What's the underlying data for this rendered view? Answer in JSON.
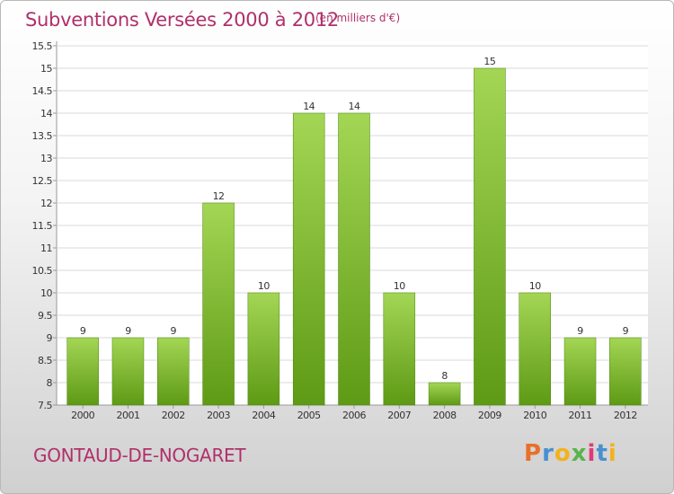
{
  "header": {
    "title": "Subventions Versées 2000 à 2012",
    "subtitle": "(en milliers d'€)"
  },
  "footer": {
    "commune": "GONTAUD-DE-NOGARET",
    "brand": {
      "letters": [
        "P",
        "r",
        "o",
        "x",
        "i",
        "t",
        "i"
      ],
      "colors": [
        "#e8702a",
        "#4a8fd0",
        "#f2b21e",
        "#5ab44a",
        "#e03a7a",
        "#4a8fd0",
        "#f2b21e"
      ]
    }
  },
  "colors": {
    "bar_light": "#a3d654",
    "bar_dark": "#5e9a15",
    "grid": "#d8d8d8",
    "title": "#b0306a"
  },
  "chart_data": {
    "type": "bar",
    "categories": [
      "2000",
      "2001",
      "2002",
      "2003",
      "2004",
      "2005",
      "2006",
      "2007",
      "2008",
      "2009",
      "2010",
      "2011",
      "2012"
    ],
    "values": [
      9,
      9,
      9,
      12,
      10,
      14,
      14,
      10,
      8,
      15,
      10,
      9,
      9
    ],
    "data_labels": [
      "9",
      "9",
      "9",
      "12",
      "10",
      "14",
      "14",
      "10",
      "8",
      "15",
      "10",
      "9",
      "9"
    ],
    "y_ticks": [
      "7.5",
      "8",
      "8.5",
      "9",
      "9.5",
      "10",
      "10.5",
      "11",
      "11.5",
      "12",
      "12.5",
      "13",
      "13.5",
      "14",
      "14.5",
      "15",
      "15.5"
    ],
    "ylim": [
      7.5,
      15.5
    ],
    "grid": true,
    "legend": "none"
  }
}
